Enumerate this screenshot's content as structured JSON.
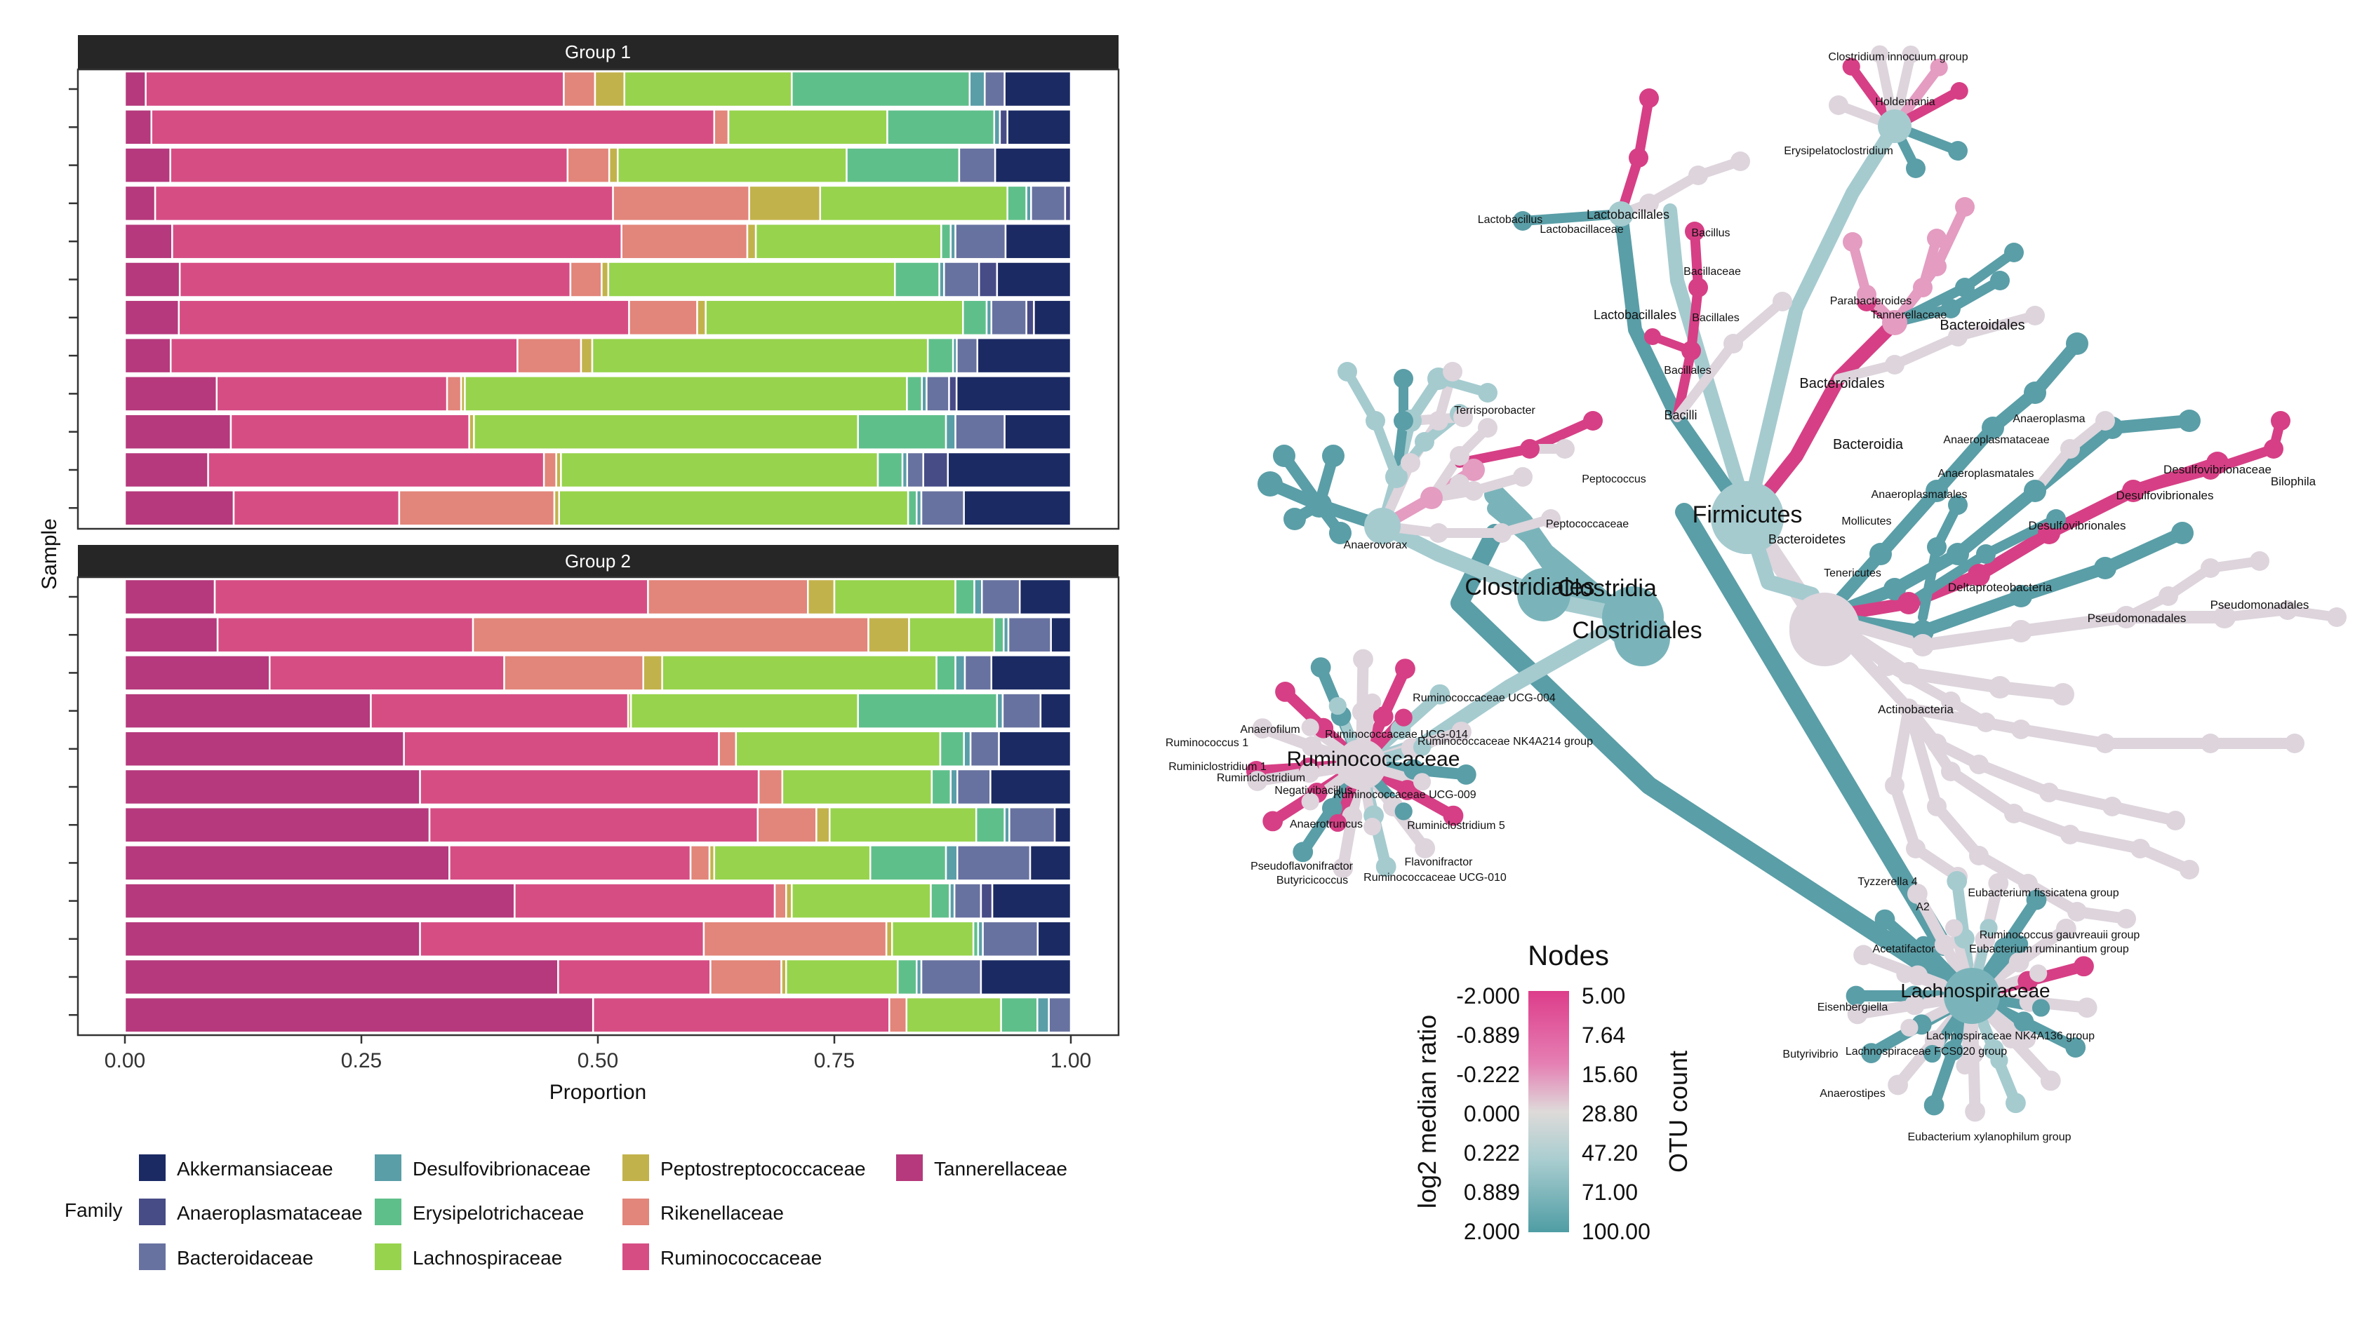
{
  "stacked_chart": {
    "panels": [
      "Group 1",
      "Group 2"
    ],
    "x_ticks": [
      "0.00",
      "0.25",
      "0.50",
      "0.75",
      "1.00"
    ],
    "xlabel": "Proportion",
    "ylabel": "Sample",
    "legend_title": "Family"
  },
  "family_colors": {
    "Akkermansiaceae": "#1b2a63",
    "Anaeroplasmataceae": "#474b86",
    "Bacteroidaceae": "#6872a0",
    "Desulfovibrionaceae": "#5a9ea7",
    "Erysipelotrichaceae": "#5fbf8a",
    "Lachnospiraceae": "#97d34d",
    "Peptostreptococcaceae": "#c2b24b",
    "Rikenellaceae": "#e2857a",
    "Ruminococcaceae": "#d64d84",
    "Tannerellaceae": "#b5397c"
  },
  "legend_items": [
    "Akkermansiaceae",
    "Anaeroplasmataceae",
    "Bacteroidaceae",
    "Desulfovibrionaceae",
    "Erysipelotrichaceae",
    "Lachnospiraceae",
    "Peptostreptococcaceae",
    "Rikenellaceae",
    "Ruminococcaceae",
    "Tannerellaceae"
  ],
  "tree_legend": {
    "title": "Nodes",
    "ratio_label": "log2 median ratio",
    "ratio_ticks": [
      "-2.000",
      "-0.889",
      "-0.222",
      "0.000",
      "0.222",
      "0.889",
      "2.000"
    ],
    "count_label": "OTU count",
    "count_ticks": [
      "5.00",
      "7.64",
      "15.60",
      "28.80",
      "47.20",
      "71.00",
      "100.00"
    ]
  },
  "tree_labels": [
    "Firmicutes",
    "Clostridia",
    "Clostridiales",
    "Clostridiales",
    "Bacteroidetes",
    "Bacilli",
    "Lactobacillales",
    "Lactobacillales",
    "Lactobacillaceae",
    "Lactobacillus",
    "Bacillus",
    "Bacillaceae",
    "Bacillales",
    "Bacillales",
    "Clostridium innocuum group",
    "Holdemania",
    "Erysipelatoclostridium",
    "Parabacteroides",
    "Tannerellaceae",
    "Bacteroidales",
    "Bacteroidales",
    "Bacteroidia",
    "Anaeroplasma",
    "Anaeroplasmataceae",
    "Anaeroplasmatales",
    "Anaeroplasmatales",
    "Mollicutes",
    "Tenericutes",
    "Desulfovibrionaceae",
    "Bilophila",
    "Desulfovibrionales",
    "Desulfovibrionales",
    "Deltaproteobacteria",
    "Pseudomonadales",
    "Pseudomonadales",
    "Actinobacteria",
    "Terrisporobacter",
    "Peptococcus",
    "Peptococcaceae",
    "Anaerovorax",
    "Ruminococcaceae",
    "Ruminococcaceae UCG-004",
    "Anaerofilum",
    "Ruminococcaceae UCG-014",
    "Ruminococcaceae NK4A214 group",
    "Ruminococcus 1",
    "Ruminiclostridium 1",
    "Ruminiclostridium",
    "Negativibacillus",
    "Ruminococcaceae UCG-009",
    "Anaerotruncus",
    "Ruminiclostridium 5",
    "Flavonifractor",
    "Pseudoflavonifractor",
    "Butyricicoccus",
    "Ruminococcaceae UCG-010",
    "Lachnospiraceae",
    "Tyzzerella 4",
    "A2",
    "Eubacterium fissicatena group",
    "Acetatifactor",
    "Ruminococcus gauvreauii group",
    "Eubacterium ruminantium group",
    "Eisenbergiella",
    "Lachnospiraceae NK4A136 group",
    "Butyrivibrio",
    "Lachnospiraceae FCS020 group",
    "Anaerostipes",
    "Eubacterium xylanophilum group"
  ],
  "chart_data": [
    {
      "type": "bar",
      "orientation": "horizontal-stacked",
      "panel": "Group 1",
      "xlabel": "Proportion",
      "ylabel": "Sample",
      "xlim": [
        0,
        1
      ],
      "rows": [
        [
          [
            "Tannerellaceae",
            0.022
          ],
          [
            "Ruminococcaceae",
            0.442
          ],
          [
            "Rikenellaceae",
            0.033
          ],
          [
            "Peptostreptococcaceae",
            0.031
          ],
          [
            "Lachnospiraceae",
            0.177
          ],
          [
            "Erysipelotrichaceae",
            0.188
          ],
          [
            "Desulfovibrionaceae",
            0.016
          ],
          [
            "Bacteroidaceae",
            0.021
          ],
          [
            "Akkermansiaceae",
            0.07
          ]
        ],
        [
          [
            "Tannerellaceae",
            0.028
          ],
          [
            "Ruminococcaceae",
            0.595
          ],
          [
            "Rikenellaceae",
            0.015
          ],
          [
            "Lachnospiraceae",
            0.168
          ],
          [
            "Erysipelotrichaceae",
            0.113
          ],
          [
            "Desulfovibrionaceae",
            0.006
          ],
          [
            "Anaeroplasmataceae",
            0.008
          ],
          [
            "Akkermansiaceae",
            0.067
          ]
        ],
        [
          [
            "Tannerellaceae",
            0.048
          ],
          [
            "Ruminococcaceae",
            0.42
          ],
          [
            "Rikenellaceae",
            0.044
          ],
          [
            "Peptostreptococcaceae",
            0.009
          ],
          [
            "Lachnospiraceae",
            0.242
          ],
          [
            "Erysipelotrichaceae",
            0.119
          ],
          [
            "Bacteroidaceae",
            0.038
          ],
          [
            "Akkermansiaceae",
            0.08
          ]
        ],
        [
          [
            "Tannerellaceae",
            0.032
          ],
          [
            "Ruminococcaceae",
            0.484
          ],
          [
            "Rikenellaceae",
            0.144
          ],
          [
            "Peptostreptococcaceae",
            0.075
          ],
          [
            "Lachnospiraceae",
            0.198
          ],
          [
            "Erysipelotrichaceae",
            0.02
          ],
          [
            "Desulfovibrionaceae",
            0.005
          ],
          [
            "Bacteroidaceae",
            0.036
          ],
          [
            "Anaeroplasmataceae",
            0.006
          ]
        ],
        [
          [
            "Tannerellaceae",
            0.05
          ],
          [
            "Ruminococcaceae",
            0.475
          ],
          [
            "Rikenellaceae",
            0.133
          ],
          [
            "Peptostreptococcaceae",
            0.009
          ],
          [
            "Lachnospiraceae",
            0.196
          ],
          [
            "Erysipelotrichaceae",
            0.01
          ],
          [
            "Desulfovibrionaceae",
            0.005
          ],
          [
            "Bacteroidaceae",
            0.053
          ],
          [
            "Akkermansiaceae",
            0.069
          ]
        ],
        [
          [
            "Tannerellaceae",
            0.058
          ],
          [
            "Ruminococcaceae",
            0.413
          ],
          [
            "Rikenellaceae",
            0.033
          ],
          [
            "Peptostreptococcaceae",
            0.007
          ],
          [
            "Lachnospiraceae",
            0.303
          ],
          [
            "Erysipelotrichaceae",
            0.047
          ],
          [
            "Desulfovibrionaceae",
            0.005
          ],
          [
            "Bacteroidaceae",
            0.037
          ],
          [
            "Anaeroplasmataceae",
            0.019
          ],
          [
            "Akkermansiaceae",
            0.078
          ]
        ],
        [
          [
            "Tannerellaceae",
            0.057
          ],
          [
            "Ruminococcaceae",
            0.476
          ],
          [
            "Rikenellaceae",
            0.072
          ],
          [
            "Peptostreptococcaceae",
            0.009
          ],
          [
            "Lachnospiraceae",
            0.272
          ],
          [
            "Erysipelotrichaceae",
            0.025
          ],
          [
            "Desulfovibrionaceae",
            0.005
          ],
          [
            "Bacteroidaceae",
            0.037
          ],
          [
            "Anaeroplasmataceae",
            0.008
          ],
          [
            "Akkermansiaceae",
            0.039
          ]
        ],
        [
          [
            "Tannerellaceae",
            0.049
          ],
          [
            "Ruminococcaceae",
            0.371
          ],
          [
            "Rikenellaceae",
            0.068
          ],
          [
            "Peptostreptococcaceae",
            0.012
          ],
          [
            "Lachnospiraceae",
            0.359
          ],
          [
            "Erysipelotrichaceae",
            0.027
          ],
          [
            "Desulfovibrionaceae",
            0.004
          ],
          [
            "Bacteroidaceae",
            0.022
          ],
          [
            "Akkermansiaceae",
            0.1
          ]
        ],
        [
          [
            "Tannerellaceae",
            0.098
          ],
          [
            "Ruminococcaceae",
            0.246
          ],
          [
            "Rikenellaceae",
            0.015
          ],
          [
            "Peptostreptococcaceae",
            0.004
          ],
          [
            "Lachnospiraceae",
            0.472
          ],
          [
            "Erysipelotrichaceae",
            0.016
          ],
          [
            "Desulfovibrionaceae",
            0.005
          ],
          [
            "Bacteroidaceae",
            0.024
          ],
          [
            "Anaeroplasmataceae",
            0.008
          ],
          [
            "Akkermansiaceae",
            0.122
          ]
        ],
        [
          [
            "Tannerellaceae",
            0.112
          ],
          [
            "Ruminococcaceae",
            0.252
          ],
          [
            "Peptostreptococcaceae",
            0.005
          ],
          [
            "Lachnospiraceae",
            0.406
          ],
          [
            "Erysipelotrichaceae",
            0.093
          ],
          [
            "Desulfovibrionaceae",
            0.01
          ],
          [
            "Bacteroidaceae",
            0.052
          ],
          [
            "Akkermansiaceae",
            0.07
          ]
        ],
        [
          [
            "Tannerellaceae",
            0.088
          ],
          [
            "Ruminococcaceae",
            0.355
          ],
          [
            "Rikenellaceae",
            0.013
          ],
          [
            "Peptostreptococcaceae",
            0.005
          ],
          [
            "Lachnospiraceae",
            0.335
          ],
          [
            "Erysipelotrichaceae",
            0.026
          ],
          [
            "Desulfovibrionaceae",
            0.005
          ],
          [
            "Bacteroidaceae",
            0.017
          ],
          [
            "Anaeroplasmataceae",
            0.026
          ],
          [
            "Akkermansiaceae",
            0.13
          ]
        ],
        [
          [
            "Tannerellaceae",
            0.115
          ],
          [
            "Ruminococcaceae",
            0.175
          ],
          [
            "Rikenellaceae",
            0.164
          ],
          [
            "Peptostreptococcaceae",
            0.005
          ],
          [
            "Lachnospiraceae",
            0.369
          ],
          [
            "Erysipelotrichaceae",
            0.009
          ],
          [
            "Desulfovibrionaceae",
            0.005
          ],
          [
            "Bacteroidaceae",
            0.045
          ],
          [
            "Akkermansiaceae",
            0.113
          ]
        ]
      ]
    },
    {
      "type": "bar",
      "orientation": "horizontal-stacked",
      "panel": "Group 2",
      "xlabel": "Proportion",
      "ylabel": "Sample",
      "xlim": [
        0,
        1
      ],
      "rows": [
        [
          [
            "Tannerellaceae",
            0.095
          ],
          [
            "Ruminococcaceae",
            0.458
          ],
          [
            "Rikenellaceae",
            0.169
          ],
          [
            "Peptostreptococcaceae",
            0.028
          ],
          [
            "Lachnospiraceae",
            0.128
          ],
          [
            "Erysipelotrichaceae",
            0.02
          ],
          [
            "Desulfovibrionaceae",
            0.008
          ],
          [
            "Bacteroidaceae",
            0.04
          ],
          [
            "Akkermansiaceae",
            0.054
          ]
        ],
        [
          [
            "Tannerellaceae",
            0.098
          ],
          [
            "Ruminococcaceae",
            0.27
          ],
          [
            "Rikenellaceae",
            0.418
          ],
          [
            "Peptostreptococcaceae",
            0.043
          ],
          [
            "Lachnospiraceae",
            0.09
          ],
          [
            "Erysipelotrichaceae",
            0.01
          ],
          [
            "Desulfovibrionaceae",
            0.005
          ],
          [
            "Bacteroidaceae",
            0.045
          ],
          [
            "Akkermansiaceae",
            0.021
          ]
        ],
        [
          [
            "Tannerellaceae",
            0.153
          ],
          [
            "Ruminococcaceae",
            0.248
          ],
          [
            "Rikenellaceae",
            0.147
          ],
          [
            "Peptostreptococcaceae",
            0.02
          ],
          [
            "Lachnospiraceae",
            0.29
          ],
          [
            "Erysipelotrichaceae",
            0.02
          ],
          [
            "Desulfovibrionaceae",
            0.01
          ],
          [
            "Bacteroidaceae",
            0.028
          ],
          [
            "Akkermansiaceae",
            0.084
          ]
        ],
        [
          [
            "Tannerellaceae",
            0.26
          ],
          [
            "Ruminococcaceae",
            0.272
          ],
          [
            "Peptostreptococcaceae",
            0.003
          ],
          [
            "Lachnospiraceae",
            0.24
          ],
          [
            "Erysipelotrichaceae",
            0.147
          ],
          [
            "Desulfovibrionaceae",
            0.006
          ],
          [
            "Bacteroidaceae",
            0.04
          ],
          [
            "Akkermansiaceae",
            0.032
          ]
        ],
        [
          [
            "Tannerellaceae",
            0.295
          ],
          [
            "Ruminococcaceae",
            0.333
          ],
          [
            "Rikenellaceae",
            0.018
          ],
          [
            "Lachnospiraceae",
            0.216
          ],
          [
            "Erysipelotrichaceae",
            0.025
          ],
          [
            "Desulfovibrionaceae",
            0.007
          ],
          [
            "Bacteroidaceae",
            0.03
          ],
          [
            "Akkermansiaceae",
            0.076
          ]
        ],
        [
          [
            "Tannerellaceae",
            0.312
          ],
          [
            "Ruminococcaceae",
            0.358
          ],
          [
            "Rikenellaceae",
            0.025
          ],
          [
            "Lachnospiraceae",
            0.158
          ],
          [
            "Erysipelotrichaceae",
            0.02
          ],
          [
            "Desulfovibrionaceae",
            0.007
          ],
          [
            "Bacteroidaceae",
            0.035
          ],
          [
            "Akkermansiaceae",
            0.085
          ]
        ],
        [
          [
            "Tannerellaceae",
            0.322
          ],
          [
            "Ruminococcaceae",
            0.347
          ],
          [
            "Rikenellaceae",
            0.062
          ],
          [
            "Peptostreptococcaceae",
            0.014
          ],
          [
            "Lachnospiraceae",
            0.155
          ],
          [
            "Erysipelotrichaceae",
            0.03
          ],
          [
            "Desulfovibrionaceae",
            0.005
          ],
          [
            "Bacteroidaceae",
            0.048
          ],
          [
            "Akkermansiaceae",
            0.017
          ]
        ],
        [
          [
            "Tannerellaceae",
            0.343
          ],
          [
            "Ruminococcaceae",
            0.255
          ],
          [
            "Rikenellaceae",
            0.02
          ],
          [
            "Peptostreptococcaceae",
            0.005
          ],
          [
            "Lachnospiraceae",
            0.165
          ],
          [
            "Erysipelotrichaceae",
            0.08
          ],
          [
            "Desulfovibrionaceae",
            0.012
          ],
          [
            "Bacteroidaceae",
            0.077
          ],
          [
            "Akkermansiaceae",
            0.043
          ]
        ],
        [
          [
            "Tannerellaceae",
            0.412
          ],
          [
            "Ruminococcaceae",
            0.275
          ],
          [
            "Rikenellaceae",
            0.012
          ],
          [
            "Peptostreptococcaceae",
            0.006
          ],
          [
            "Lachnospiraceae",
            0.147
          ],
          [
            "Erysipelotrichaceae",
            0.02
          ],
          [
            "Desulfovibrionaceae",
            0.005
          ],
          [
            "Bacteroidaceae",
            0.028
          ],
          [
            "Anaeroplasmataceae",
            0.012
          ],
          [
            "Akkermansiaceae",
            0.083
          ]
        ],
        [
          [
            "Tannerellaceae",
            0.312
          ],
          [
            "Ruminococcaceae",
            0.3
          ],
          [
            "Rikenellaceae",
            0.193
          ],
          [
            "Peptostreptococcaceae",
            0.006
          ],
          [
            "Lachnospiraceae",
            0.086
          ],
          [
            "Erysipelotrichaceae",
            0.005
          ],
          [
            "Desulfovibrionaceae",
            0.005
          ],
          [
            "Bacteroidaceae",
            0.058
          ],
          [
            "Akkermansiaceae",
            0.035
          ]
        ],
        [
          [
            "Tannerellaceae",
            0.458
          ],
          [
            "Ruminococcaceae",
            0.161
          ],
          [
            "Rikenellaceae",
            0.075
          ],
          [
            "Peptostreptococcaceae",
            0.005
          ],
          [
            "Lachnospiraceae",
            0.118
          ],
          [
            "Erysipelotrichaceae",
            0.02
          ],
          [
            "Desulfovibrionaceae",
            0.005
          ],
          [
            "Bacteroidaceae",
            0.063
          ],
          [
            "Akkermansiaceae",
            0.095
          ]
        ],
        [
          [
            "Tannerellaceae",
            0.49
          ],
          [
            "Ruminococcaceae",
            0.31
          ],
          [
            "Rikenellaceae",
            0.018
          ],
          [
            "Lachnospiraceae",
            0.099
          ],
          [
            "Erysipelotrichaceae",
            0.038
          ],
          [
            "Desulfovibrionaceae",
            0.012
          ],
          [
            "Bacteroidaceae",
            0.023
          ]
        ]
      ]
    }
  ]
}
